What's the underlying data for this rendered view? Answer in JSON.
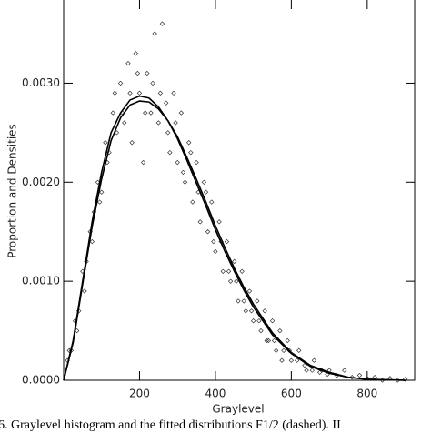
{
  "chart_data": {
    "type": "scatter",
    "xlabel": "Graylevel",
    "ylabel": "Proportion and Densities",
    "caption": "6. Graylevel histogram and the fitted distributions F1/2 (dashed). II",
    "xlim": [
      0,
      925
    ],
    "ylim": [
      0,
      0.00384
    ],
    "xticks": [
      200,
      400,
      600,
      800
    ],
    "yticks": [
      {
        "value": 0,
        "label": "0.0000"
      },
      {
        "value": 0.001,
        "label": "0.0010"
      },
      {
        "value": 0.002,
        "label": "0.0020"
      },
      {
        "value": 0.003,
        "label": "0.0030"
      }
    ],
    "marker_color": "#333333",
    "line_color": "#000000",
    "points": {
      "x": [
        10,
        20,
        30,
        40,
        50,
        60,
        70,
        80,
        90,
        100,
        110,
        120,
        130,
        140,
        150,
        160,
        170,
        180,
        190,
        200,
        210,
        220,
        230,
        240,
        250,
        260,
        270,
        280,
        290,
        300,
        310,
        320,
        330,
        340,
        350,
        360,
        370,
        380,
        390,
        400,
        410,
        420,
        430,
        440,
        450,
        460,
        470,
        480,
        490,
        500,
        510,
        520,
        530,
        540,
        550,
        560,
        570,
        580,
        590,
        600,
        620,
        640,
        660,
        680,
        700,
        720,
        740,
        760,
        780,
        800,
        820,
        840,
        860,
        880,
        900,
        15,
        35,
        55,
        75,
        95,
        115,
        135,
        155,
        175,
        195,
        215,
        235,
        255,
        275,
        295,
        315,
        335,
        355,
        375,
        395,
        415,
        435,
        455,
        475,
        495,
        515,
        535,
        555,
        575,
        595,
        615,
        635,
        655,
        675,
        695
      ],
      "y": [
        0.0002,
        0.0003,
        0.0006,
        0.0007,
        0.0011,
        0.0012,
        0.0015,
        0.0017,
        0.002,
        0.0019,
        0.0024,
        0.0023,
        0.0027,
        0.0025,
        0.003,
        0.0026,
        0.0032,
        0.0024,
        0.0033,
        0.0029,
        0.0022,
        0.0031,
        0.0027,
        0.0035,
        0.0026,
        0.0036,
        0.0028,
        0.0023,
        0.0029,
        0.0022,
        0.0027,
        0.002,
        0.0024,
        0.0018,
        0.0022,
        0.0016,
        0.002,
        0.0015,
        0.0018,
        0.0013,
        0.0016,
        0.0011,
        0.0014,
        0.001,
        0.0012,
        0.0008,
        0.0011,
        0.0007,
        0.0009,
        0.0006,
        0.0008,
        0.0005,
        0.0007,
        0.0004,
        0.0006,
        0.0003,
        0.0005,
        0.0003,
        0.0004,
        0.0002,
        0.0003,
        0.0001,
        0.0002,
        0.0001,
        0.0001,
        5e-05,
        0.0001,
        3e-05,
        5e-05,
        2e-05,
        3e-05,
        0,
        2e-05,
        0,
        1e-05,
        0.0003,
        0.0005,
        0.0009,
        0.0014,
        0.0018,
        0.0022,
        0.0029,
        0.0027,
        0.0029,
        0.0031,
        0.0027,
        0.003,
        0.0029,
        0.0025,
        0.0026,
        0.0021,
        0.0023,
        0.0019,
        0.0019,
        0.0014,
        0.0014,
        0.0011,
        0.001,
        0.0008,
        0.0007,
        0.0006,
        0.0004,
        0.0004,
        0.0002,
        0.0003,
        0.0002,
        0.00015,
        0.0001,
        8e-05,
        6e-05
      ]
    },
    "curves": [
      {
        "x": [
          0,
          25,
          50,
          75,
          100,
          125,
          150,
          175,
          200,
          225,
          250,
          275,
          300,
          325,
          350,
          375,
          400,
          425,
          450,
          475,
          500,
          550,
          600,
          650,
          700,
          750,
          800,
          900
        ],
        "values": [
          0,
          0.0004,
          0.001,
          0.0016,
          0.0021,
          0.0025,
          0.0027,
          0.00283,
          0.00287,
          0.00285,
          0.00276,
          0.00262,
          0.00244,
          0.00222,
          0.00199,
          0.00176,
          0.00152,
          0.0013,
          0.0011,
          0.00091,
          0.00074,
          0.00046,
          0.00027,
          0.00014,
          7e-05,
          3e-05,
          1e-05,
          0
        ]
      },
      {
        "x": [
          0,
          25,
          50,
          75,
          100,
          125,
          150,
          175,
          200,
          225,
          250,
          275,
          300,
          325,
          350,
          375,
          400,
          425,
          450,
          475,
          500,
          550,
          600,
          650,
          700,
          750,
          800,
          900
        ],
        "values": [
          0,
          0.00038,
          0.00097,
          0.00155,
          0.00203,
          0.00242,
          0.00265,
          0.00278,
          0.00282,
          0.00281,
          0.00274,
          0.00262,
          0.00246,
          0.00225,
          0.00203,
          0.0018,
          0.00156,
          0.00134,
          0.00113,
          0.00094,
          0.00077,
          0.00048,
          0.00028,
          0.00015,
          8e-05,
          3e-05,
          1e-05,
          0
        ]
      }
    ]
  }
}
